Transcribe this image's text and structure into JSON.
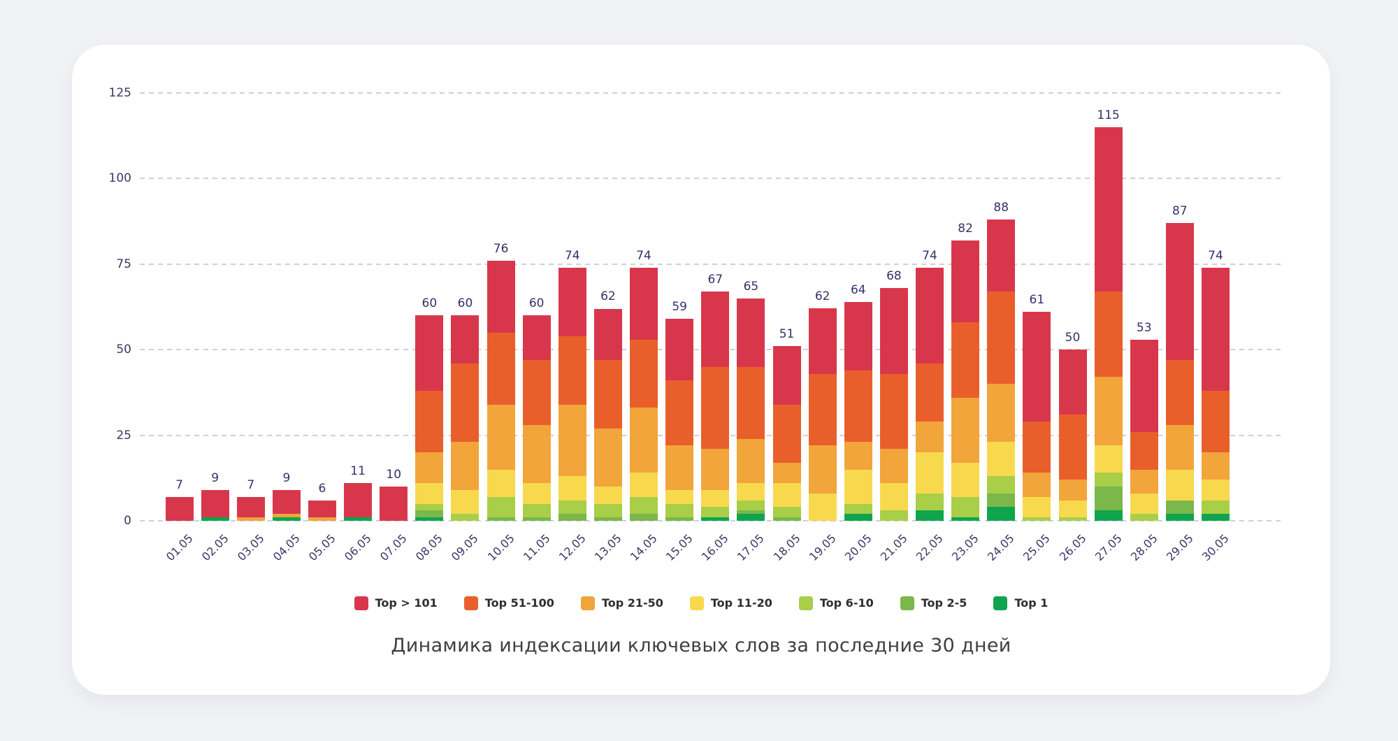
{
  "chart_data": {
    "type": "bar",
    "stacked": true,
    "title": "Динамика индексации ключевых слов за последние 30 дней",
    "grid": "horizontal-dashed",
    "legend_position": "bottom",
    "ylim": [
      0,
      125
    ],
    "y_ticks": [
      0,
      25,
      50,
      75,
      100,
      125
    ],
    "categories": [
      "01.05",
      "02.05",
      "03.05",
      "04.05",
      "05.05",
      "06.05",
      "07.05",
      "08.05",
      "09.05",
      "10.05",
      "11.05",
      "12.05",
      "13.05",
      "14.05",
      "15.05",
      "16.05",
      "17.05",
      "18.05",
      "19.05",
      "20.05",
      "21.05",
      "22.05",
      "23.05",
      "24.05",
      "25.05",
      "26.05",
      "27.05",
      "28.05",
      "29.05",
      "30.05"
    ],
    "totals": [
      7,
      9,
      7,
      9,
      6,
      11,
      10,
      60,
      60,
      76,
      60,
      74,
      62,
      74,
      59,
      67,
      65,
      51,
      62,
      64,
      68,
      74,
      82,
      88,
      61,
      50,
      115,
      53,
      87,
      74
    ],
    "series": [
      {
        "name": "Top 1",
        "color": "#10A44F",
        "values": [
          0,
          1,
          0,
          1,
          0,
          1,
          0,
          1,
          0,
          0,
          0,
          0,
          0,
          0,
          0,
          1,
          2,
          0,
          0,
          2,
          0,
          3,
          1,
          4,
          0,
          0,
          3,
          0,
          2,
          2
        ]
      },
      {
        "name": "Top 2-5",
        "color": "#7BB74A",
        "values": [
          0,
          0,
          0,
          0,
          0,
          0,
          0,
          2,
          0,
          1,
          1,
          2,
          1,
          2,
          1,
          0,
          1,
          1,
          0,
          0,
          0,
          0,
          0,
          4,
          0,
          0,
          7,
          0,
          4,
          0
        ]
      },
      {
        "name": "Top 6-10",
        "color": "#A9CE48",
        "values": [
          0,
          0,
          0,
          0,
          0,
          0,
          0,
          2,
          2,
          6,
          4,
          4,
          4,
          5,
          4,
          3,
          3,
          3,
          0,
          3,
          3,
          5,
          6,
          5,
          1,
          1,
          4,
          2,
          0,
          4
        ]
      },
      {
        "name": "Top 11-20",
        "color": "#F8D94E",
        "values": [
          0,
          0,
          0,
          0,
          0,
          0,
          0,
          6,
          7,
          8,
          6,
          7,
          5,
          7,
          4,
          5,
          5,
          7,
          8,
          10,
          8,
          12,
          10,
          10,
          6,
          5,
          8,
          6,
          9,
          6
        ]
      },
      {
        "name": "Top 21-50",
        "color": "#F1A53B",
        "values": [
          0,
          0,
          1,
          1,
          1,
          0,
          0,
          9,
          14,
          19,
          17,
          21,
          17,
          19,
          13,
          12,
          13,
          6,
          14,
          8,
          10,
          9,
          19,
          17,
          7,
          6,
          20,
          7,
          13,
          8
        ]
      },
      {
        "name": "Top 51-100",
        "color": "#E95F2B",
        "values": [
          0,
          0,
          0,
          0,
          0,
          0,
          0,
          18,
          23,
          21,
          19,
          20,
          20,
          20,
          19,
          24,
          21,
          17,
          21,
          21,
          22,
          17,
          22,
          27,
          15,
          19,
          25,
          11,
          19,
          18
        ]
      },
      {
        "name": "Top > 101",
        "color": "#D8374B",
        "values": [
          7,
          8,
          6,
          7,
          5,
          10,
          10,
          22,
          14,
          21,
          13,
          20,
          15,
          21,
          18,
          22,
          20,
          17,
          19,
          20,
          25,
          28,
          24,
          21,
          32,
          19,
          48,
          27,
          40,
          36
        ]
      }
    ],
    "legend_order": [
      "Top > 101",
      "Top 51-100",
      "Top 21-50",
      "Top 11-20",
      "Top 6-10",
      "Top 2-5",
      "Top 1"
    ]
  }
}
